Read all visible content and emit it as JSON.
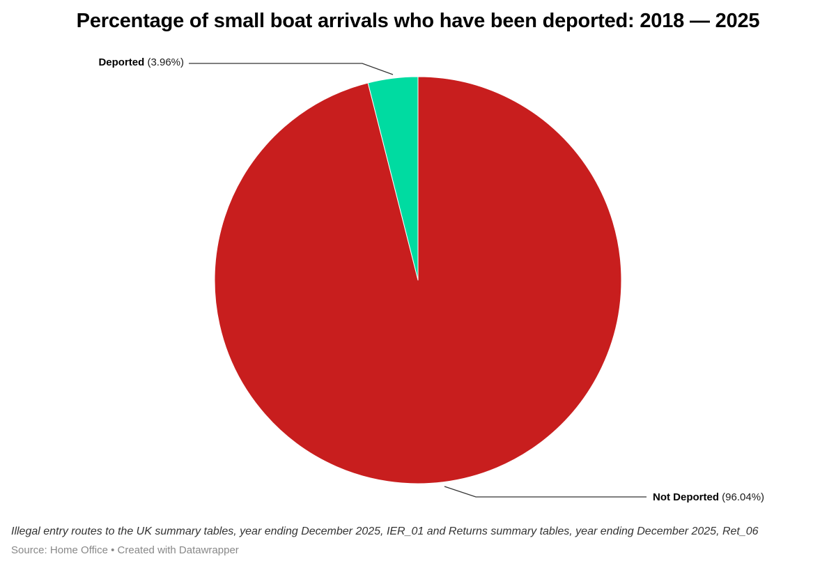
{
  "chart_data": {
    "type": "pie",
    "title": "Percentage of small boat arrivals who have been deported: 2018 — 2025",
    "slices": [
      {
        "name": "Deported",
        "value": 3.96,
        "value_label": "(3.96%)",
        "color": "#00dba1"
      },
      {
        "name": "Not Deported",
        "value": 96.04,
        "value_label": "(96.04%)",
        "color": "#c81e1e"
      }
    ],
    "start": "12 o'clock",
    "direction": "counter-clockwise"
  },
  "footer": {
    "notes": "Illegal entry routes to the UK summary tables, year ending December 2025, IER_01 and Returns summary tables, year ending December 2025, Ret_06",
    "source": "Source: Home Office • Created with Datawrapper"
  }
}
